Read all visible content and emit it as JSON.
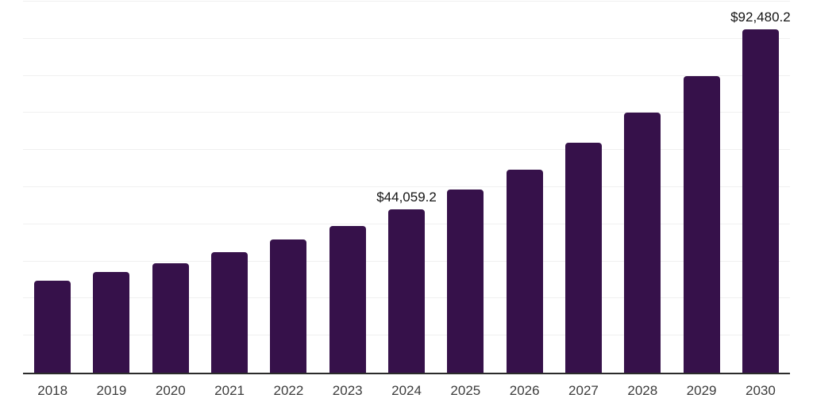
{
  "chart": {
    "background_color": "#ffffff",
    "bar_color": "#36114A",
    "gridline_color": "#f0f0f0",
    "axis_line_color": "#2b2b2b",
    "tick_label_color": "#3c3c3c",
    "annotation_color": "#141414"
  },
  "chart_data": {
    "type": "bar",
    "title": "",
    "xlabel": "",
    "ylabel": "",
    "categories": [
      "2018",
      "2019",
      "2020",
      "2021",
      "2022",
      "2023",
      "2024",
      "2025",
      "2026",
      "2027",
      "2028",
      "2029",
      "2030"
    ],
    "values": [
      24700,
      27100,
      29600,
      32500,
      35900,
      39500,
      44059.2,
      49300,
      54800,
      62000,
      70000,
      79900,
      92480.2
    ],
    "annotations": [
      {
        "category": "2024",
        "text": "$44,059.2"
      },
      {
        "category": "2030",
        "text": "$92,480.2"
      }
    ],
    "ylim": [
      0,
      100000
    ],
    "grid_interval": 10000,
    "grid": "horizontal",
    "y_tick_labels": "none",
    "legend": "none"
  }
}
